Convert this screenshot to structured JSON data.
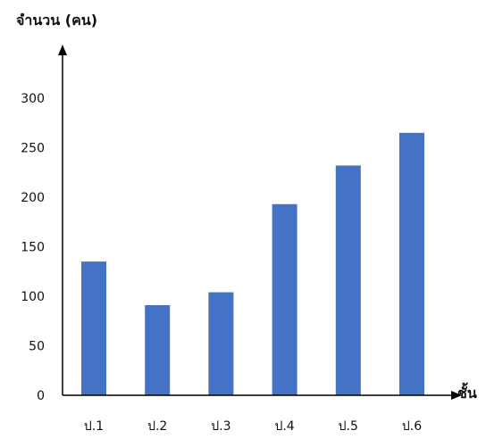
{
  "chart_data": {
    "type": "bar",
    "categories": [
      "ป.1",
      "ป.2",
      "ป.3",
      "ป.4",
      "ป.5",
      "ป.6"
    ],
    "values": [
      135,
      91,
      104,
      193,
      232,
      265
    ],
    "ylabel": "จำนวน (คน)",
    "xlabel": "ชั้น",
    "ylim": [
      0,
      300
    ],
    "yticks": [
      0,
      50,
      100,
      150,
      200,
      250,
      300
    ],
    "grid": false,
    "bar_color": "#4472c4",
    "axis_color": "#000000"
  }
}
